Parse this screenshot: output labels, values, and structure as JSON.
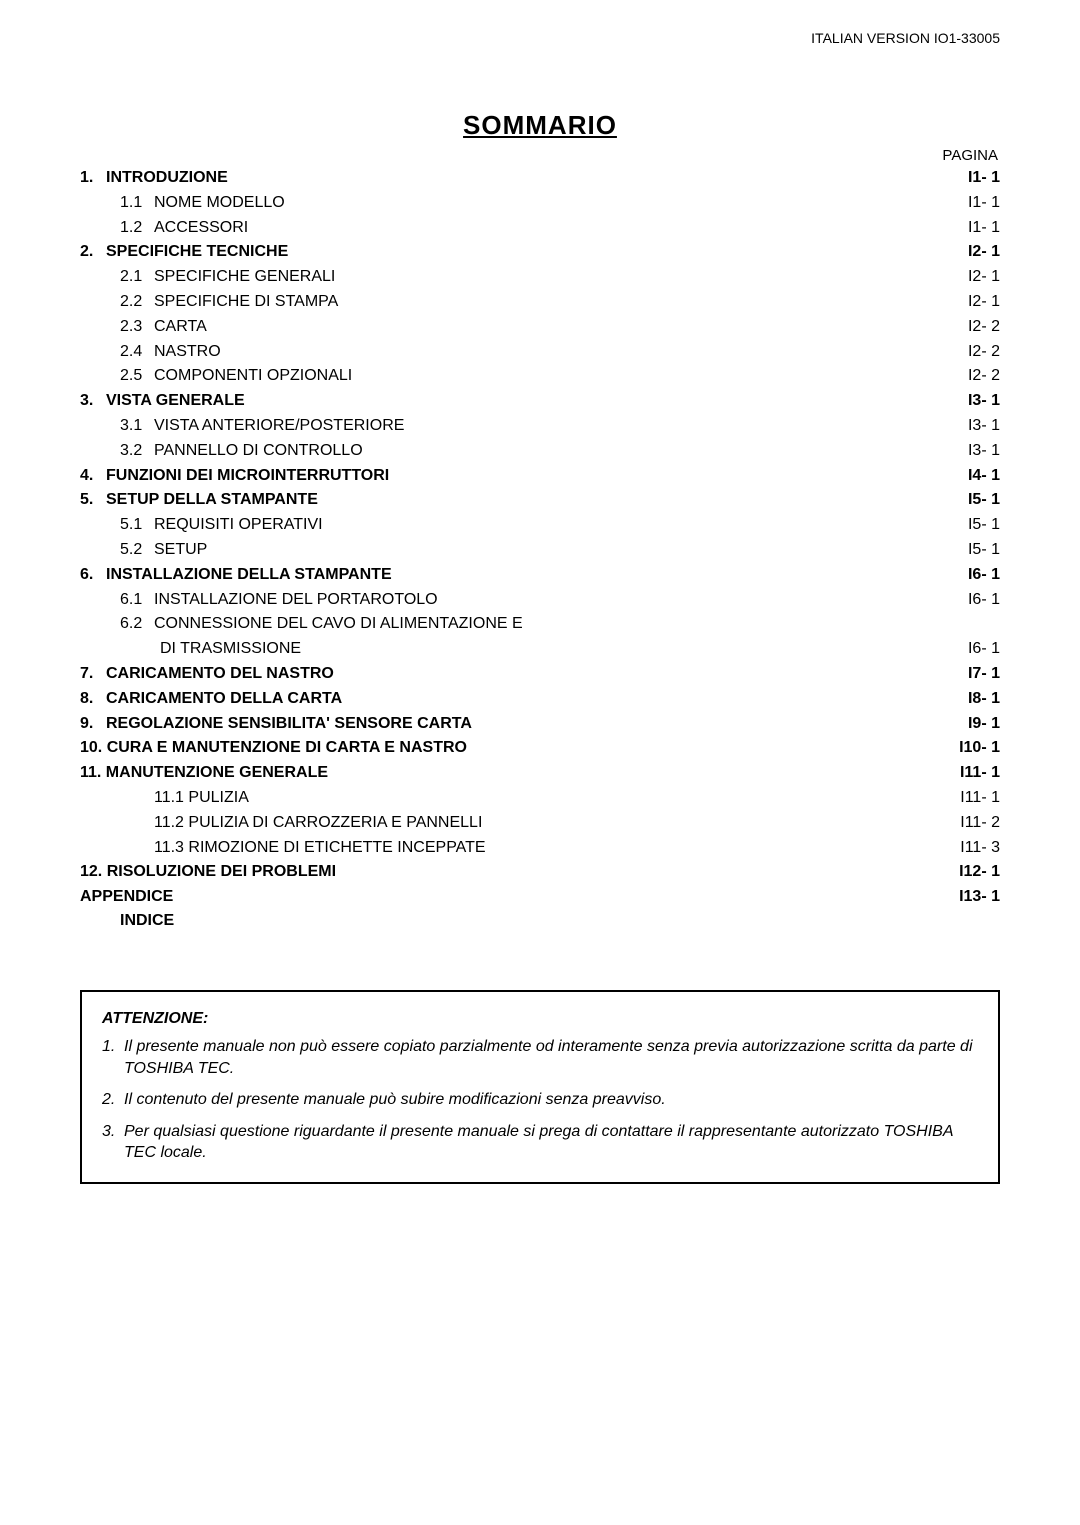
{
  "header": {
    "version_text": "ITALIAN VERSION IO1-33005"
  },
  "title": "SOMMARIO",
  "pagina_label": "PAGINA",
  "toc": [
    {
      "lvl": 1,
      "bold": true,
      "num": "1.",
      "label": "INTRODUZIONE",
      "page": "I1- 1"
    },
    {
      "lvl": 2,
      "bold": false,
      "num": "1.1",
      "label": "NOME MODELLO",
      "page": "I1- 1"
    },
    {
      "lvl": 2,
      "bold": false,
      "num": "1.2",
      "label": "ACCESSORI",
      "page": "I1- 1"
    },
    {
      "lvl": 1,
      "bold": true,
      "num": "2.",
      "label": "SPECIFICHE TECNICHE",
      "page": "I2- 1"
    },
    {
      "lvl": 2,
      "bold": false,
      "num": "2.1",
      "label": "SPECIFICHE GENERALI",
      "page": "I2- 1"
    },
    {
      "lvl": 2,
      "bold": false,
      "num": "2.2",
      "label": "SPECIFICHE DI STAMPA",
      "page": "I2- 1"
    },
    {
      "lvl": 2,
      "bold": false,
      "num": "2.3",
      "label": "CARTA",
      "page": "I2- 2"
    },
    {
      "lvl": 2,
      "bold": false,
      "num": "2.4",
      "label": "NASTRO",
      "page": "I2- 2"
    },
    {
      "lvl": 2,
      "bold": false,
      "num": "2.5",
      "label": "COMPONENTI OPZIONALI",
      "page": "I2- 2"
    },
    {
      "lvl": 1,
      "bold": true,
      "num": "3.",
      "label": "VISTA GENERALE",
      "page": "I3- 1"
    },
    {
      "lvl": 2,
      "bold": false,
      "num": "3.1",
      "label": "VISTA ANTERIORE/POSTERIORE",
      "page": "I3- 1"
    },
    {
      "lvl": 2,
      "bold": false,
      "num": "3.2",
      "label": "PANNELLO DI CONTROLLO",
      "page": "I3- 1"
    },
    {
      "lvl": 1,
      "bold": true,
      "num": "4.",
      "label": "FUNZIONI DEI MICROINTERRUTTORI",
      "page": "I4- 1"
    },
    {
      "lvl": 1,
      "bold": true,
      "num": "5.",
      "label": "SETUP DELLA STAMPANTE",
      "page": "I5- 1"
    },
    {
      "lvl": 2,
      "bold": false,
      "num": "5.1",
      "label": "REQUISITI OPERATIVI",
      "page": "I5- 1"
    },
    {
      "lvl": 2,
      "bold": false,
      "num": "5.2",
      "label": "SETUP",
      "page": "I5- 1"
    },
    {
      "lvl": 1,
      "bold": true,
      "num": "6.",
      "label": "INSTALLAZIONE DELLA STAMPANTE",
      "page": "I6- 1"
    },
    {
      "lvl": 2,
      "bold": false,
      "num": "6.1",
      "label": "INSTALLAZIONE DEL PORTAROTOLO",
      "page": "I6- 1"
    },
    {
      "lvl": 2,
      "bold": false,
      "num": "6.2",
      "label": "CONNESSIONE DEL CAVO DI ALIMENTAZIONE E",
      "page": "",
      "no_leader": true
    },
    {
      "lvl": "2sub",
      "bold": false,
      "num": "",
      "label": "DI TRASMISSIONE",
      "page": "I6- 1"
    },
    {
      "lvl": 1,
      "bold": true,
      "num": "7.",
      "label": "CARICAMENTO DEL NASTRO",
      "page": "I7- 1"
    },
    {
      "lvl": 1,
      "bold": true,
      "num": "8.",
      "label": "CARICAMENTO DELLA CARTA",
      "page": "I8- 1"
    },
    {
      "lvl": 1,
      "bold": true,
      "num": "9.",
      "label": "REGOLAZIONE SENSIBILITA' SENSORE CARTA",
      "page": "I9- 1"
    },
    {
      "lvl": "1nn",
      "bold": true,
      "num": "",
      "label": "10. CURA E MANUTENZIONE DI CARTA E NASTRO",
      "page": "I10- 1"
    },
    {
      "lvl": "1nn",
      "bold": true,
      "num": "",
      "label": "11. MANUTENZIONE GENERALE",
      "page": "I11- 1"
    },
    {
      "lvl": 2,
      "bold": false,
      "num": "",
      "label": "11.1 PULIZIA",
      "page": "I11- 1"
    },
    {
      "lvl": 2,
      "bold": false,
      "num": "",
      "label": "11.2 PULIZIA DI CARROZZERIA E PANNELLI",
      "page": "I11- 2"
    },
    {
      "lvl": 2,
      "bold": false,
      "num": "",
      "label": "11.3 RIMOZIONE DI ETICHETTE INCEPPATE",
      "page": "I11- 3"
    },
    {
      "lvl": "1nn",
      "bold": true,
      "num": "",
      "label": "12. RISOLUZIONE DEI PROBLEMI",
      "page": "I12- 1"
    },
    {
      "lvl": "1nn",
      "bold": true,
      "num": "",
      "label": "APPENDICE",
      "page": "I13- 1"
    }
  ],
  "indice_label": "INDICE",
  "notebox": {
    "title": "ATTENZIONE:",
    "items": [
      {
        "num": "1.",
        "text": "Il presente manuale non può essere copiato parzialmente od interamente senza previa autorizzazione scritta da parte di TOSHIBA TEC."
      },
      {
        "num": "2.",
        "text": "Il contenuto del presente manuale può subire modificazioni senza preavviso."
      },
      {
        "num": "3.",
        "text": "Per qualsiasi questione riguardante il presente manuale si prega di contattare il rappresentante autorizzato TOSHIBA TEC locale."
      }
    ]
  }
}
